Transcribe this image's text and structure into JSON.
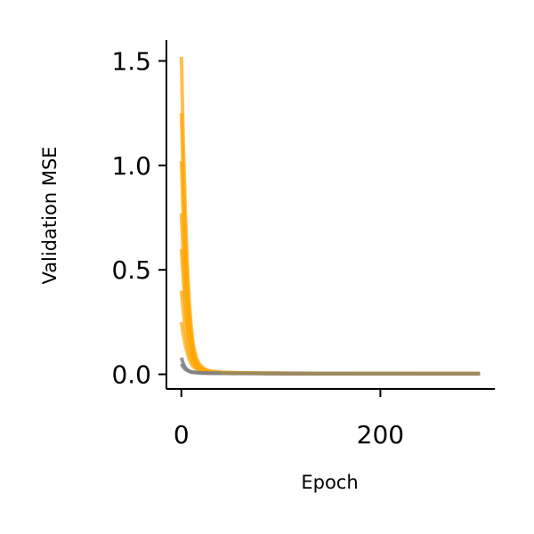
{
  "chart_data": {
    "type": "line",
    "xlabel": "Epoch",
    "ylabel": "Validation MSE",
    "xlim": [
      -15,
      315
    ],
    "ylim": [
      -0.07,
      1.6
    ],
    "xticks": [
      0,
      200
    ],
    "xtick_labels": [
      "0",
      "200"
    ],
    "yticks": [
      0.0,
      0.5,
      1.0,
      1.5
    ],
    "ytick_labels": [
      "0.0",
      "0.5",
      "1.0",
      "1.5"
    ],
    "grid": false,
    "legend": "none",
    "spines": "left-bottom",
    "series": [
      {
        "color": "#FFA500",
        "alpha": 0.7,
        "x": [
          0,
          2,
          4,
          6,
          8,
          10,
          12,
          15,
          18,
          22,
          26,
          30,
          40,
          60,
          100,
          150,
          200,
          300
        ],
        "y": [
          1.52,
          1.1,
          0.78,
          0.52,
          0.34,
          0.22,
          0.14,
          0.08,
          0.05,
          0.03,
          0.02,
          0.015,
          0.01,
          0.007,
          0.005,
          0.004,
          0.003,
          0.003
        ]
      },
      {
        "color": "#FFA500",
        "alpha": 0.7,
        "x": [
          0,
          2,
          4,
          6,
          8,
          10,
          12,
          15,
          18,
          22,
          26,
          30,
          40,
          60,
          100,
          150,
          200,
          300
        ],
        "y": [
          1.25,
          0.92,
          0.64,
          0.43,
          0.28,
          0.18,
          0.11,
          0.065,
          0.04,
          0.025,
          0.018,
          0.013,
          0.009,
          0.006,
          0.005,
          0.004,
          0.003,
          0.003
        ]
      },
      {
        "color": "#FFA500",
        "alpha": 0.7,
        "x": [
          0,
          2,
          4,
          6,
          8,
          10,
          12,
          15,
          18,
          22,
          26,
          30,
          40,
          60,
          100,
          150,
          200,
          300
        ],
        "y": [
          1.02,
          0.74,
          0.52,
          0.35,
          0.23,
          0.15,
          0.095,
          0.055,
          0.035,
          0.022,
          0.016,
          0.012,
          0.008,
          0.006,
          0.004,
          0.003,
          0.003,
          0.003
        ]
      },
      {
        "color": "#FFA500",
        "alpha": 0.7,
        "x": [
          0,
          2,
          4,
          6,
          8,
          10,
          12,
          15,
          18,
          22,
          26,
          30,
          40,
          60,
          100,
          150,
          200,
          300
        ],
        "y": [
          0.77,
          0.56,
          0.4,
          0.27,
          0.18,
          0.12,
          0.075,
          0.045,
          0.03,
          0.02,
          0.014,
          0.011,
          0.008,
          0.005,
          0.004,
          0.003,
          0.003,
          0.003
        ]
      },
      {
        "color": "#FFA500",
        "alpha": 0.7,
        "x": [
          0,
          2,
          4,
          6,
          8,
          10,
          12,
          15,
          18,
          22,
          26,
          30,
          40,
          60,
          100,
          150,
          200,
          300
        ],
        "y": [
          0.6,
          0.45,
          0.32,
          0.22,
          0.15,
          0.1,
          0.065,
          0.04,
          0.027,
          0.018,
          0.013,
          0.01,
          0.007,
          0.005,
          0.004,
          0.003,
          0.003,
          0.003
        ]
      },
      {
        "color": "#FFA500",
        "alpha": 0.7,
        "x": [
          0,
          2,
          4,
          6,
          8,
          10,
          12,
          15,
          18,
          22,
          26,
          30,
          40,
          60,
          100,
          150,
          200,
          300
        ],
        "y": [
          0.4,
          0.3,
          0.22,
          0.15,
          0.1,
          0.07,
          0.048,
          0.032,
          0.022,
          0.016,
          0.012,
          0.009,
          0.007,
          0.005,
          0.004,
          0.003,
          0.003,
          0.003
        ]
      },
      {
        "color": "#FFA500",
        "alpha": 0.7,
        "x": [
          0,
          2,
          4,
          6,
          8,
          10,
          12,
          15,
          18,
          22,
          26,
          30,
          40,
          60,
          100,
          150,
          200,
          300
        ],
        "y": [
          0.25,
          0.19,
          0.14,
          0.1,
          0.07,
          0.05,
          0.036,
          0.025,
          0.018,
          0.013,
          0.01,
          0.008,
          0.006,
          0.005,
          0.004,
          0.003,
          0.003,
          0.003
        ]
      },
      {
        "color": "#808080",
        "alpha": 0.85,
        "x": [
          0,
          2,
          4,
          6,
          8,
          10,
          15,
          20,
          30,
          50,
          70,
          100,
          150,
          200,
          300
        ],
        "y": [
          0.08,
          0.05,
          0.032,
          0.022,
          0.016,
          0.012,
          0.009,
          0.007,
          0.006,
          0.005,
          0.004,
          0.004,
          0.003,
          0.003,
          0.003
        ]
      },
      {
        "color": "#808080",
        "alpha": 0.85,
        "x": [
          0,
          2,
          4,
          6,
          8,
          10,
          15,
          20,
          30,
          50,
          70,
          100,
          150,
          200,
          300
        ],
        "y": [
          0.05,
          0.035,
          0.024,
          0.018,
          0.013,
          0.01,
          0.008,
          0.006,
          0.005,
          0.004,
          0.004,
          0.003,
          0.003,
          0.003,
          0.003
        ]
      },
      {
        "color": "#A0895A",
        "alpha": 0.9,
        "x": [
          40,
          100,
          150,
          200,
          250,
          300
        ],
        "y": [
          0.006,
          0.005,
          0.004,
          0.004,
          0.003,
          0.003
        ]
      }
    ]
  }
}
